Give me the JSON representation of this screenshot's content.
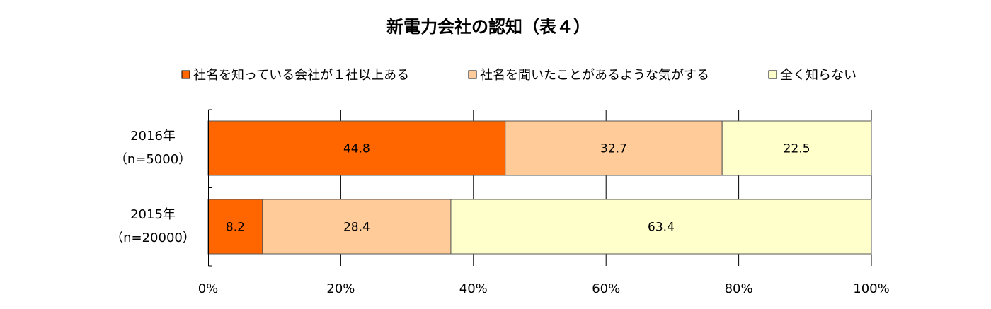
{
  "chart_data": {
    "type": "bar",
    "orientation": "horizontal",
    "stacked": "percent",
    "title": "新電力会社の認知（表４）",
    "categories": [
      [
        "2016年",
        "（n=5000）"
      ],
      [
        "2015年",
        "（n=20000）"
      ]
    ],
    "series": [
      {
        "name": "社名を知っている会社が１社以上ある",
        "values": [
          44.8,
          8.2
        ],
        "color": "#ff6600"
      },
      {
        "name": "社名を聞いたことがあるような気がする",
        "values": [
          32.7,
          28.4
        ],
        "color": "#ffcc99"
      },
      {
        "name": "全く知らない",
        "values": [
          22.5,
          63.4
        ],
        "color": "#ffffcc"
      }
    ],
    "xlim": [
      0,
      100
    ],
    "xticks": [
      "0%",
      "20%",
      "40%",
      "60%",
      "80%",
      "100%"
    ],
    "grid": true,
    "legend_position": "top"
  }
}
